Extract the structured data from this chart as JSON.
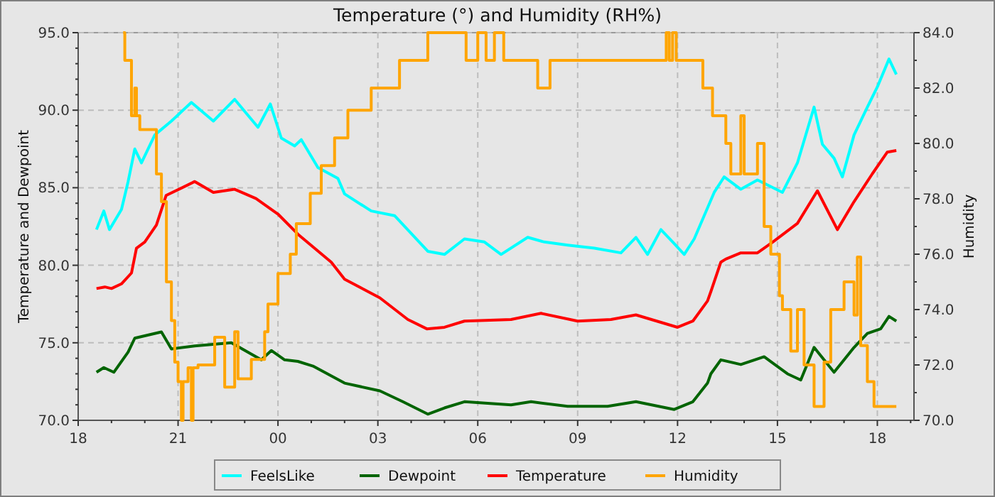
{
  "chart_data": {
    "type": "line",
    "title": "Temperature (°) and Humidity (RH%)",
    "ylabel": "Temperature and Dewpoint",
    "y2label": "Humidity",
    "xlim": [
      18,
      43.1
    ],
    "ylim": [
      70,
      95
    ],
    "y2lim": [
      70,
      84
    ],
    "xticks": [
      {
        "value": 18,
        "label": "18"
      },
      {
        "value": 19,
        "label": null
      },
      {
        "value": 20,
        "label": null
      },
      {
        "value": 21,
        "label": "21"
      },
      {
        "value": 22,
        "label": null
      },
      {
        "value": 23,
        "label": null
      },
      {
        "value": 24,
        "label": "00"
      },
      {
        "value": 25,
        "label": null
      },
      {
        "value": 26,
        "label": null
      },
      {
        "value": 27,
        "label": "03"
      },
      {
        "value": 28,
        "label": null
      },
      {
        "value": 29,
        "label": null
      },
      {
        "value": 30,
        "label": "06"
      },
      {
        "value": 31,
        "label": null
      },
      {
        "value": 32,
        "label": null
      },
      {
        "value": 33,
        "label": "09"
      },
      {
        "value": 34,
        "label": null
      },
      {
        "value": 35,
        "label": null
      },
      {
        "value": 36,
        "label": "12"
      },
      {
        "value": 37,
        "label": null
      },
      {
        "value": 38,
        "label": null
      },
      {
        "value": 39,
        "label": "15"
      },
      {
        "value": 40,
        "label": null
      },
      {
        "value": 41,
        "label": null
      },
      {
        "value": 42,
        "label": "18"
      },
      {
        "value": 43,
        "label": null
      }
    ],
    "yticks": [
      {
        "value": 70,
        "label": "70.0"
      },
      {
        "value": 71,
        "label": null
      },
      {
        "value": 72,
        "label": null
      },
      {
        "value": 73,
        "label": null
      },
      {
        "value": 74,
        "label": null
      },
      {
        "value": 75,
        "label": "75.0"
      },
      {
        "value": 76,
        "label": null
      },
      {
        "value": 77,
        "label": null
      },
      {
        "value": 78,
        "label": null
      },
      {
        "value": 79,
        "label": null
      },
      {
        "value": 80,
        "label": "80.0"
      },
      {
        "value": 81,
        "label": null
      },
      {
        "value": 82,
        "label": null
      },
      {
        "value": 83,
        "label": null
      },
      {
        "value": 84,
        "label": null
      },
      {
        "value": 85,
        "label": "85.0"
      },
      {
        "value": 86,
        "label": null
      },
      {
        "value": 87,
        "label": null
      },
      {
        "value": 88,
        "label": null
      },
      {
        "value": 89,
        "label": null
      },
      {
        "value": 90,
        "label": "90.0"
      },
      {
        "value": 91,
        "label": null
      },
      {
        "value": 92,
        "label": null
      },
      {
        "value": 93,
        "label": null
      },
      {
        "value": 94,
        "label": null
      },
      {
        "value": 95,
        "label": "95.0"
      }
    ],
    "y2ticks": [
      {
        "value": 70,
        "label": "70.0"
      },
      {
        "value": 71,
        "label": null
      },
      {
        "value": 72,
        "label": "72.0"
      },
      {
        "value": 73,
        "label": null
      },
      {
        "value": 74,
        "label": "74.0"
      },
      {
        "value": 75,
        "label": null
      },
      {
        "value": 76,
        "label": "76.0"
      },
      {
        "value": 77,
        "label": null
      },
      {
        "value": 78,
        "label": "78.0"
      },
      {
        "value": 79,
        "label": null
      },
      {
        "value": 80,
        "label": "80.0"
      },
      {
        "value": 81,
        "label": null
      },
      {
        "value": 82,
        "label": "82.0"
      },
      {
        "value": 83,
        "label": null
      },
      {
        "value": 84,
        "label": "84.0"
      }
    ],
    "grid": true,
    "legend": "bottom",
    "line_style": "solid",
    "series": [
      {
        "name": "FeelsLike",
        "color": "#00ffff",
        "x": [
          18.55,
          18.77,
          18.94,
          19.3,
          19.5,
          19.7,
          19.9,
          20.3,
          20.8,
          21.4,
          22.06,
          22.7,
          23.4,
          23.77,
          24.1,
          24.5,
          24.7,
          25.2,
          25.8,
          26.0,
          26.8,
          27.5,
          28.5,
          29.0,
          29.6,
          30.2,
          30.7,
          31.5,
          32.0,
          32.7,
          33.5,
          34.3,
          34.75,
          35.1,
          35.5,
          35.9,
          36.2,
          36.5,
          36.8,
          37.1,
          37.4,
          37.9,
          38.4,
          39.15,
          39.6,
          40.1,
          40.35,
          40.7,
          40.95,
          41.3,
          41.7,
          42.0,
          42.35,
          42.57
        ],
        "values": [
          82.3,
          83.5,
          82.3,
          83.6,
          85.4,
          87.5,
          86.6,
          88.4,
          89.3,
          90.5,
          89.3,
          90.7,
          88.9,
          90.4,
          88.2,
          87.7,
          88.1,
          86.3,
          85.6,
          84.6,
          83.5,
          83.2,
          80.9,
          80.7,
          81.7,
          81.5,
          80.7,
          81.8,
          81.5,
          81.3,
          81.1,
          80.8,
          81.8,
          80.7,
          82.3,
          81.4,
          80.7,
          81.7,
          83.2,
          84.7,
          85.7,
          84.9,
          85.5,
          84.7,
          86.6,
          90.2,
          87.8,
          86.9,
          85.7,
          88.4,
          90.2,
          91.5,
          93.3,
          92.3
        ]
      },
      {
        "name": "Dewpoint",
        "color": "#006400",
        "x": [
          18.55,
          18.77,
          19.07,
          19.5,
          19.7,
          20.5,
          20.8,
          21.5,
          22.6,
          23.5,
          23.8,
          24.2,
          24.6,
          25.05,
          26.0,
          27.06,
          27.75,
          28.5,
          29.0,
          29.6,
          31.0,
          31.6,
          32.7,
          33.9,
          34.75,
          35.9,
          36.46,
          36.9,
          37.0,
          37.3,
          37.9,
          38.6,
          39.3,
          39.7,
          40.1,
          40.7,
          41.3,
          41.7,
          42.1,
          42.35,
          42.57
        ],
        "values": [
          73.1,
          73.4,
          73.1,
          74.4,
          75.3,
          75.7,
          74.6,
          74.8,
          75.0,
          73.9,
          74.5,
          73.9,
          73.8,
          73.5,
          72.4,
          71.9,
          71.2,
          70.4,
          70.8,
          71.2,
          71.0,
          71.2,
          70.9,
          70.9,
          71.2,
          70.7,
          71.2,
          72.4,
          73.0,
          73.9,
          73.6,
          74.1,
          73.0,
          72.6,
          74.7,
          73.1,
          74.7,
          75.6,
          75.9,
          76.7,
          76.4
        ]
      },
      {
        "name": "Temperature",
        "color": "#ff0000",
        "x": [
          18.55,
          18.8,
          19.0,
          19.3,
          19.6,
          19.75,
          20.0,
          20.35,
          20.64,
          21.5,
          22.06,
          22.7,
          23.34,
          24.0,
          24.6,
          25.6,
          26.0,
          27.06,
          27.9,
          28.47,
          29.0,
          29.6,
          31.0,
          31.9,
          33.0,
          34.0,
          34.75,
          36.0,
          36.46,
          36.9,
          37.0,
          37.3,
          37.45,
          37.9,
          38.4,
          38.86,
          39.6,
          40.2,
          40.8,
          41.3,
          41.85,
          42.3,
          42.57
        ],
        "values": [
          78.5,
          78.6,
          78.5,
          78.8,
          79.5,
          81.1,
          81.5,
          82.6,
          84.5,
          85.4,
          84.7,
          84.9,
          84.3,
          83.3,
          82.0,
          80.2,
          79.1,
          77.9,
          76.5,
          75.9,
          76.0,
          76.4,
          76.5,
          76.9,
          76.4,
          76.5,
          76.8,
          76.0,
          76.4,
          77.7,
          78.3,
          80.2,
          80.4,
          80.8,
          80.8,
          81.5,
          82.7,
          84.8,
          82.3,
          84.1,
          85.9,
          87.3,
          87.4
        ]
      },
      {
        "name": "Humidity",
        "type": "step",
        "axis": "y2",
        "color": "#ffa500",
        "x": [
          19.35,
          19.4,
          19.6,
          19.7,
          19.75,
          19.85,
          20.35,
          20.5,
          20.65,
          20.8,
          20.9,
          21.0,
          21.1,
          21.15,
          21.3,
          21.4,
          21.45,
          21.6,
          22.1,
          22.4,
          22.7,
          22.8,
          23.2,
          23.6,
          23.7,
          24.0,
          24.37,
          24.55,
          24.97,
          25.3,
          25.7,
          26.1,
          26.8,
          27.65,
          28.5,
          29.65,
          30.0,
          30.25,
          30.5,
          30.78,
          31.8,
          32.17,
          35.66,
          35.75,
          35.85,
          35.96,
          36.76,
          37.05,
          37.3,
          37.45,
          37.6,
          37.9,
          38.0,
          38.4,
          38.6,
          38.8,
          39.06,
          39.15,
          39.4,
          39.6,
          39.8,
          40.1,
          40.4,
          40.6,
          41.0,
          41.3,
          41.4,
          41.5,
          41.7,
          41.9,
          42.57
        ],
        "values": [
          84,
          83,
          81,
          82,
          81,
          80.5,
          78.9,
          77.9,
          75,
          73.6,
          72.1,
          71.4,
          70,
          71.4,
          71.9,
          70,
          71.9,
          72,
          73,
          71.2,
          73.2,
          71.5,
          72.2,
          73.2,
          74.2,
          75.3,
          76,
          77.1,
          78.2,
          79.2,
          80.2,
          81.2,
          82,
          83,
          84,
          83,
          84,
          83,
          84,
          83,
          82,
          83,
          84,
          83,
          84,
          83,
          82,
          81,
          81,
          80,
          78.9,
          81,
          78.9,
          80,
          77,
          76,
          74.5,
          74,
          72.5,
          74,
          72,
          70.5,
          72.1,
          74,
          75,
          73.8,
          75.9,
          72.7,
          71.4,
          70.5,
          70.5
        ]
      }
    ]
  }
}
